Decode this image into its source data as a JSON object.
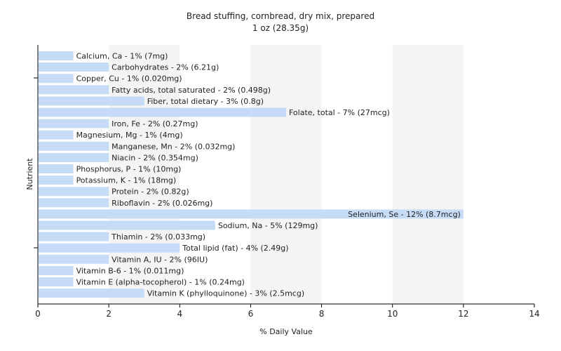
{
  "chart_data": {
    "type": "bar",
    "orientation": "horizontal",
    "title": "Bread stuffing, cornbread, dry mix, prepared",
    "subtitle": "1 oz (28.35g)",
    "xlabel": "% Daily Value",
    "ylabel": "Nutrient",
    "xlim": [
      0,
      14
    ],
    "xticks": [
      0,
      2,
      4,
      6,
      8,
      10,
      12,
      14
    ],
    "grid": true,
    "colors": {
      "bar": "#c6dcf6",
      "band_light": "#ffffff",
      "band_dark": "#f4f4f4",
      "axis": "#000000"
    },
    "categories": [
      "Calcium, Ca",
      "Carbohydrates",
      "Copper, Cu",
      "Fatty acids, total saturated",
      "Fiber, total dietary",
      "Folate, total",
      "Iron, Fe",
      "Magnesium, Mg",
      "Manganese, Mn",
      "Niacin",
      "Phosphorus, P",
      "Potassium, K",
      "Protein",
      "Riboflavin",
      "Selenium, Se",
      "Sodium, Na",
      "Thiamin",
      "Total lipid (fat)",
      "Vitamin A, IU",
      "Vitamin B-6",
      "Vitamin E (alpha-tocopherol)",
      "Vitamin K (phylloquinone)"
    ],
    "values": [
      1,
      2,
      1,
      2,
      3,
      7,
      2,
      1,
      2,
      2,
      1,
      1,
      2,
      2,
      12,
      5,
      2,
      4,
      2,
      1,
      1,
      3
    ],
    "labels": [
      "Calcium, Ca - 1% (7mg)",
      "Carbohydrates - 2% (6.21g)",
      "Copper, Cu - 1% (0.020mg)",
      "Fatty acids, total saturated - 2% (0.498g)",
      "Fiber, total dietary - 3% (0.8g)",
      "Folate, total - 7% (27mcg)",
      "Iron, Fe - 2% (0.27mg)",
      "Magnesium, Mg - 1% (4mg)",
      "Manganese, Mn - 2% (0.032mg)",
      "Niacin - 2% (0.354mg)",
      "Phosphorus, P - 1% (10mg)",
      "Potassium, K - 1% (18mg)",
      "Protein - 2% (0.82g)",
      "Riboflavin - 2% (0.026mg)",
      "Selenium, Se - 12% (8.7mcg)",
      "Sodium, Na - 5% (129mg)",
      "Thiamin - 2% (0.033mg)",
      "Total lipid (fat) - 4% (2.49g)",
      "Vitamin A, IU - 2% (96IU)",
      "Vitamin B-6 - 1% (0.011mg)",
      "Vitamin E (alpha-tocopherol) - 1% (0.24mg)",
      "Vitamin K (phylloquinone) - 3% (2.5mcg)"
    ]
  }
}
